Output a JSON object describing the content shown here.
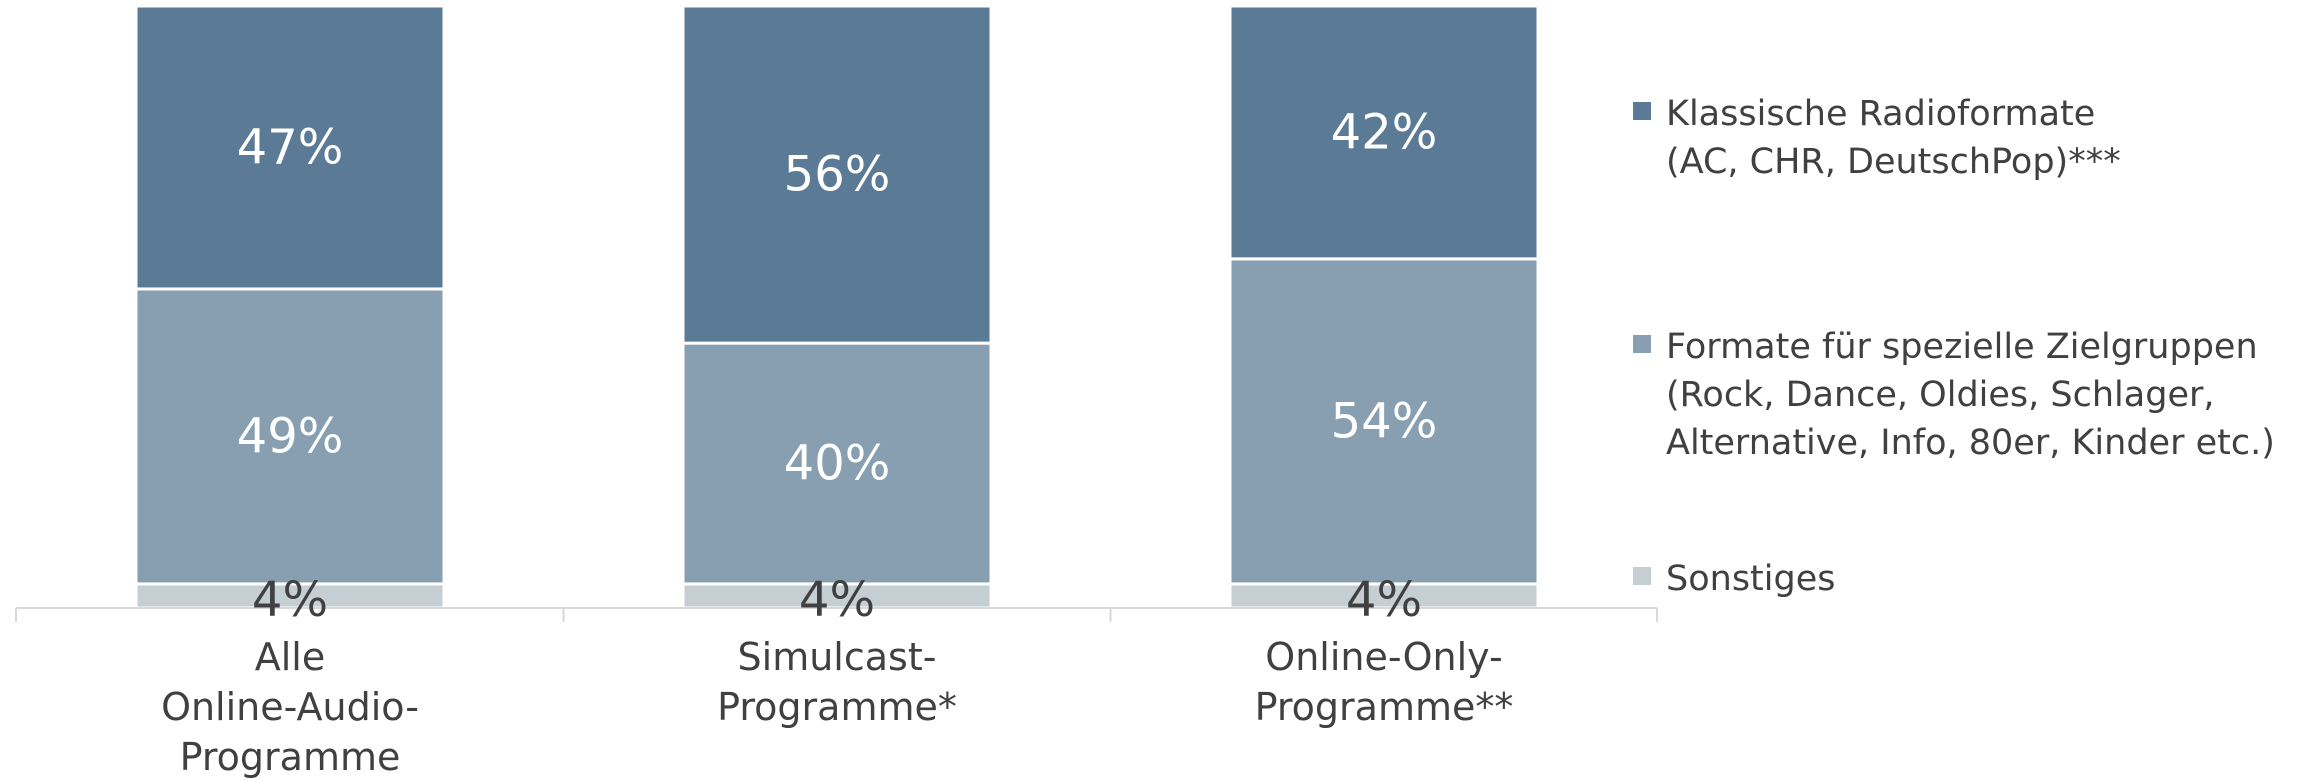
{
  "chart_data": {
    "type": "bar",
    "stacked": true,
    "normalized": true,
    "ylim": [
      0,
      100
    ],
    "grid": false,
    "legend_position": "right",
    "categories": [
      [
        "Alle",
        "Online-Audio-",
        "Programme"
      ],
      [
        "Simulcast-",
        "Programme*"
      ],
      [
        "Online-Only-",
        "Programme**"
      ]
    ],
    "series": [
      {
        "name": "Sonstiges",
        "legend_lines": [
          "Sonstiges"
        ],
        "color": "#c4ced3",
        "values": [
          4,
          4,
          4
        ],
        "labels": [
          "4%",
          "4%",
          "4%"
        ],
        "label_color": "#404040"
      },
      {
        "name": "Formate für spezielle Zielgruppen (Rock, Dance, Oldies, Schlager, Alternative, Info, 80er, Kinder etc.)",
        "legend_lines": [
          "Formate für spezielle Zielgruppen",
          "(Rock, Dance, Oldies, Schlager,",
          "Alternative, Info, 80er, Kinder etc.)"
        ],
        "color": "#879fb0",
        "values": [
          49,
          40,
          54
        ],
        "labels": [
          "49%",
          "40%",
          "54%"
        ],
        "label_color": "#ffffff"
      },
      {
        "name": "Klassische Radioformate (AC, CHR, DeutschPop)***",
        "legend_lines": [
          "Klassische Radioformate",
          "(AC, CHR, DeutschPop)***"
        ],
        "color": "#5b7a95",
        "values": [
          47,
          56,
          42
        ],
        "labels": [
          "47%",
          "56%",
          "42%"
        ],
        "label_color": "#ffffff"
      }
    ],
    "axis_color": "#d9d9d9",
    "text_color": "#404040"
  }
}
